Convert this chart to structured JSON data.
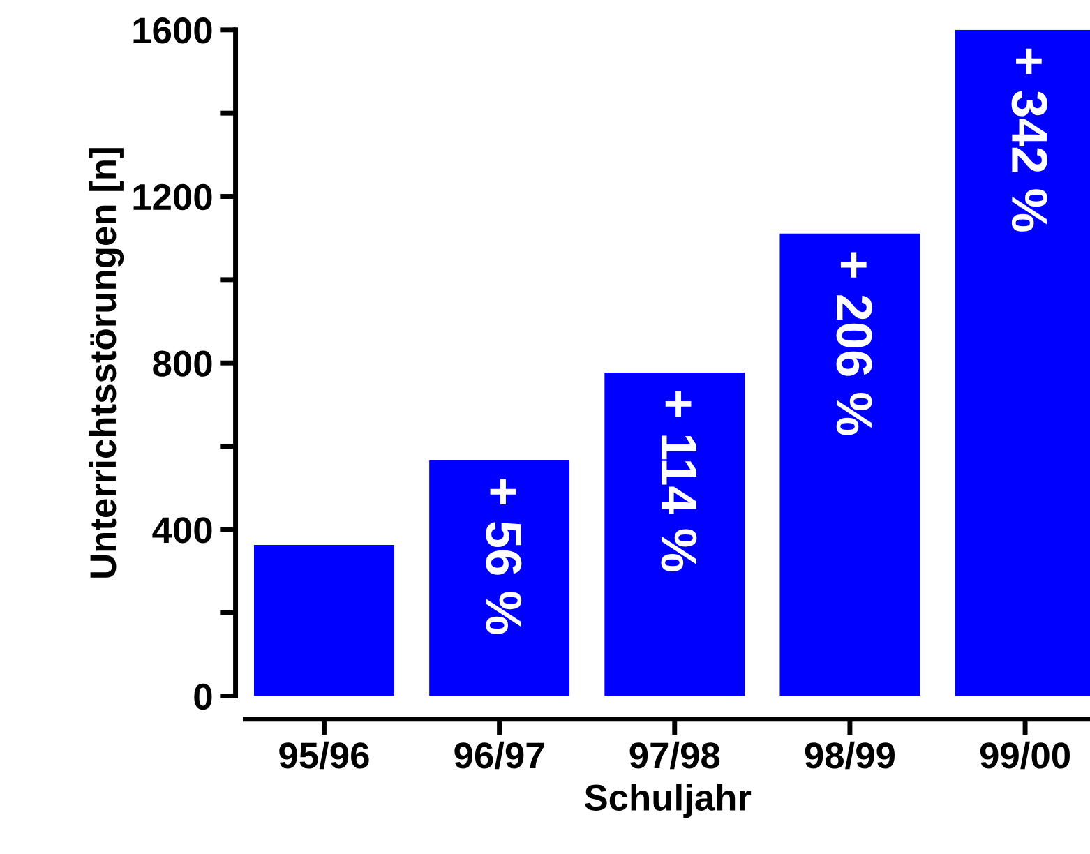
{
  "chart_data": {
    "type": "bar",
    "xlabel": "Schuljahr",
    "ylabel": "Unterrichtsstörungen [n]",
    "categories": [
      "95/96",
      "96/97",
      "97/98",
      "98/99",
      "99/00"
    ],
    "values": [
      363,
      566,
      777,
      1111,
      1600
    ],
    "annotations": [
      {
        "text": "+ 56 %",
        "x": "96/97",
        "y": 566
      },
      {
        "text": "+ 114 %",
        "x": "97/98",
        "y": 777
      },
      {
        "text": "+ 206 %",
        "x": "98/99",
        "y": 1111
      },
      {
        "text": "+ 342 %",
        "x": "99/00",
        "y": 1600
      }
    ],
    "color": "#0000ff",
    "ylim": [
      0,
      1600
    ],
    "yticks": [
      0,
      {
        "value": 200,
        "label": null
      },
      400,
      {
        "value": 600,
        "label": null
      },
      800,
      {
        "value": 1000,
        "label": null
      },
      1200,
      {
        "value": 1400,
        "label": null
      },
      1600
    ],
    "grid": false
  }
}
